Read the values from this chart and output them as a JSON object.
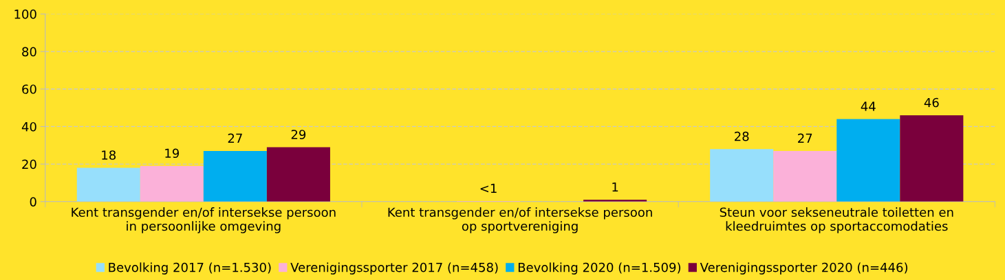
{
  "chart_data": {
    "type": "bar",
    "categories": [
      "Kent transgender en/of intersekse persoon\nin persoonlijke omgeving",
      "Kent transgender en/of intersekse persoon\nop sportvereniging",
      "Steun voor sekseneutrale toiletten en\nkleedruimtes op sportaccomodaties"
    ],
    "series": [
      {
        "name": "Bevolking 2017 (n=1.530)",
        "color": "#97dffc",
        "values": [
          18,
          null,
          28
        ],
        "value_labels": [
          "18",
          null,
          "28"
        ]
      },
      {
        "name": "Verenigingssporter 2017 (n=458)",
        "color": "#fbb1d9",
        "values": [
          19,
          0.3,
          27
        ],
        "value_labels": [
          "19",
          "<1",
          "27"
        ]
      },
      {
        "name": "Bevolking 2020 (n=1.509)",
        "color": "#00aeef",
        "values": [
          27,
          null,
          44
        ],
        "value_labels": [
          "27",
          null,
          "44"
        ]
      },
      {
        "name": "Verenigingssporter 2020 (n=446)",
        "color": "#7a003c",
        "values": [
          29,
          1,
          46
        ],
        "value_labels": [
          "29",
          "1",
          "46"
        ]
      }
    ],
    "ylim": [
      0,
      100
    ],
    "yticks": [
      0,
      20,
      40,
      60,
      80,
      100
    ],
    "grid": "y",
    "legend": "bottom"
  }
}
